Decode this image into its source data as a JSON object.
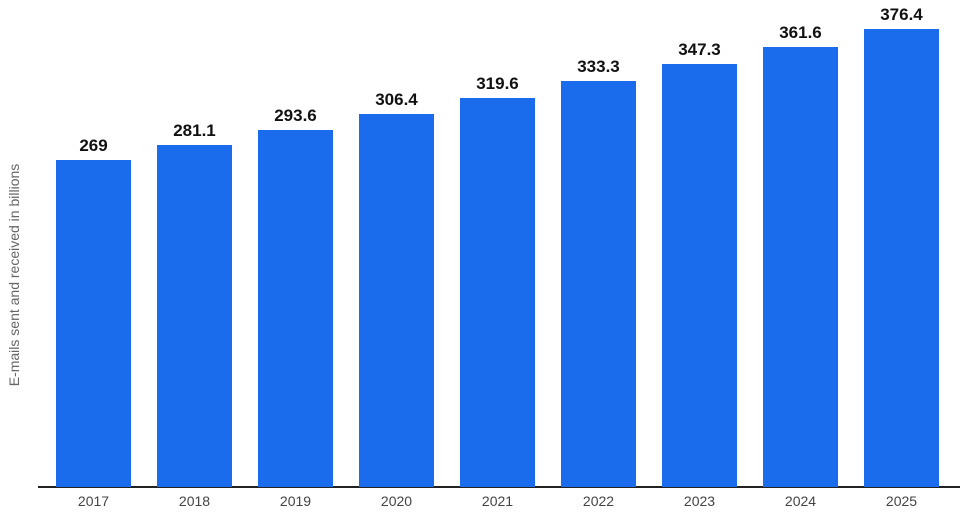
{
  "chart_data": {
    "type": "bar",
    "title": "",
    "xlabel": "",
    "ylabel": "E-mails sent and received in billions",
    "categories": [
      "2017",
      "2018",
      "2019",
      "2020",
      "2021",
      "2022",
      "2023",
      "2024",
      "2025"
    ],
    "values": [
      269,
      281.1,
      293.6,
      306.4,
      319.6,
      333.3,
      347.3,
      361.6,
      376.4
    ],
    "value_labels": [
      "269",
      "281.1",
      "293.6",
      "306.4",
      "319.6",
      "333.3",
      "347.3",
      "361.6",
      "376.4"
    ],
    "ylim": [
      0,
      400
    ],
    "grid": false,
    "legend": null,
    "bar_color": "#1b6ced"
  }
}
